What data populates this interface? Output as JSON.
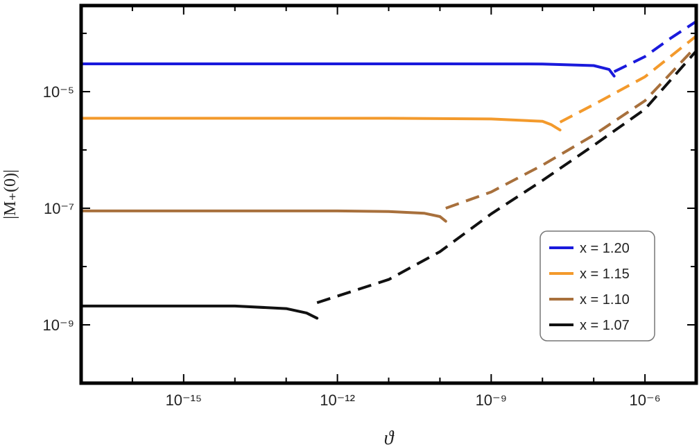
{
  "chart_data": {
    "type": "line",
    "title": "",
    "xlabel": "ϑ",
    "ylabel": "|M₊(0)|",
    "xscale": "log",
    "yscale": "log",
    "xlim": [
      1e-17,
      1e-05
    ],
    "ylim": [
      1e-10,
      0.0003
    ],
    "x_ticks": [
      {
        "value": 1e-15,
        "label": "10⁻¹⁵"
      },
      {
        "value": 1e-12,
        "label": "10⁻¹²"
      },
      {
        "value": 1e-09,
        "label": "10⁻⁹"
      },
      {
        "value": 1e-06,
        "label": "10⁻⁶"
      }
    ],
    "y_ticks": [
      {
        "value": 1e-09,
        "label": "10⁻⁹"
      },
      {
        "value": 1e-07,
        "label": "10⁻⁷"
      },
      {
        "value": 1e-05,
        "label": "10⁻⁵"
      }
    ],
    "legend_position": "bottom-right",
    "grid": false,
    "series": [
      {
        "name": "x = 1.20",
        "color": "#1a1adc",
        "solid": [
          [
            1e-17,
            3e-05
          ],
          [
            1e-10,
            3e-05
          ],
          [
            1e-08,
            2.98e-05
          ],
          [
            1e-07,
            2.8e-05
          ],
          [
            2e-07,
            2.4e-05
          ],
          [
            2.5e-07,
            1.85e-05
          ]
        ],
        "dashed": [
          [
            2.5e-07,
            2.2e-05
          ],
          [
            1e-06,
            4e-05
          ],
          [
            3e-06,
            8e-05
          ],
          [
            1e-05,
            0.00016
          ]
        ]
      },
      {
        "name": "x = 1.15",
        "color": "#f39a2c",
        "solid": [
          [
            1e-17,
            3.5e-06
          ],
          [
            1e-11,
            3.5e-06
          ],
          [
            1e-09,
            3.4e-06
          ],
          [
            1e-08,
            3.1e-06
          ],
          [
            1.5e-08,
            2.7e-06
          ],
          [
            2.2e-08,
            2.2e-06
          ]
        ],
        "dashed": [
          [
            2.2e-08,
            3e-06
          ],
          [
            1e-07,
            6e-06
          ],
          [
            1e-06,
            1.8e-05
          ],
          [
            1e-05,
            9e-05
          ]
        ]
      },
      {
        "name": "x = 1.10",
        "color": "#a8703c",
        "solid": [
          [
            1e-17,
            9e-08
          ],
          [
            1e-12,
            9e-08
          ],
          [
            1e-11,
            8.8e-08
          ],
          [
            5e-11,
            8.2e-08
          ],
          [
            1e-10,
            7.2e-08
          ],
          [
            1.3e-10,
            6e-08
          ]
        ],
        "dashed": [
          [
            1.3e-10,
            1e-07
          ],
          [
            1e-09,
            1.9e-07
          ],
          [
            1e-08,
            5.5e-07
          ],
          [
            1e-07,
            1.8e-06
          ],
          [
            1e-06,
            7e-06
          ],
          [
            1e-05,
            6e-05
          ]
        ]
      },
      {
        "name": "x = 1.07",
        "color": "#111111",
        "solid": [
          [
            1e-17,
            2.1e-09
          ],
          [
            1e-14,
            2.1e-09
          ],
          [
            1e-13,
            1.9e-09
          ],
          [
            2.5e-13,
            1.6e-09
          ],
          [
            4e-13,
            1.3e-09
          ]
        ],
        "dashed": [
          [
            4e-13,
            2.4e-09
          ],
          [
            1e-11,
            6e-09
          ],
          [
            1e-10,
            1.8e-08
          ],
          [
            1e-09,
            8e-08
          ],
          [
            1e-08,
            3e-07
          ],
          [
            1e-07,
            1.2e-06
          ],
          [
            1e-06,
            5e-06
          ],
          [
            1e-05,
            5e-05
          ]
        ]
      }
    ]
  }
}
